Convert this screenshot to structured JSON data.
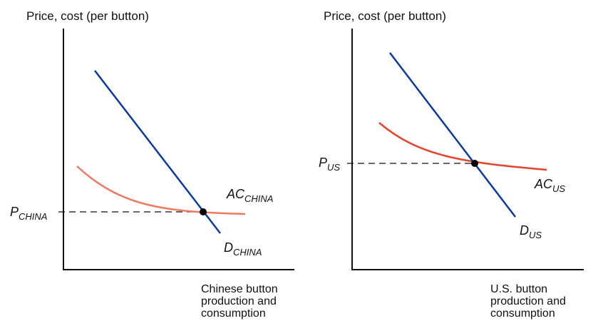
{
  "colors": {
    "axis": "#111111",
    "demand": "#0b3a9c",
    "cost_china": "#ef7a63",
    "cost_us": "#e2442c",
    "dashed": "#111111",
    "point": "#000000"
  },
  "china": {
    "y_axis_title": "Price, cost (per button)",
    "x_axis_title": "Chinese button\nproduction and\nconsumption",
    "price_label": {
      "main": "P",
      "sub": "CHINA"
    },
    "ac_label": {
      "main": "AC",
      "sub": "CHINA"
    },
    "demand_label": {
      "main": "D",
      "sub": "CHINA"
    }
  },
  "us": {
    "y_axis_title": "Price, cost (per button)",
    "x_axis_title": "U.S. button\nproduction and\nconsumption",
    "price_label": {
      "main": "P",
      "sub": "US"
    },
    "ac_label": {
      "main": "AC",
      "sub": "US"
    },
    "demand_label": {
      "main": "D",
      "sub": "US"
    }
  }
}
